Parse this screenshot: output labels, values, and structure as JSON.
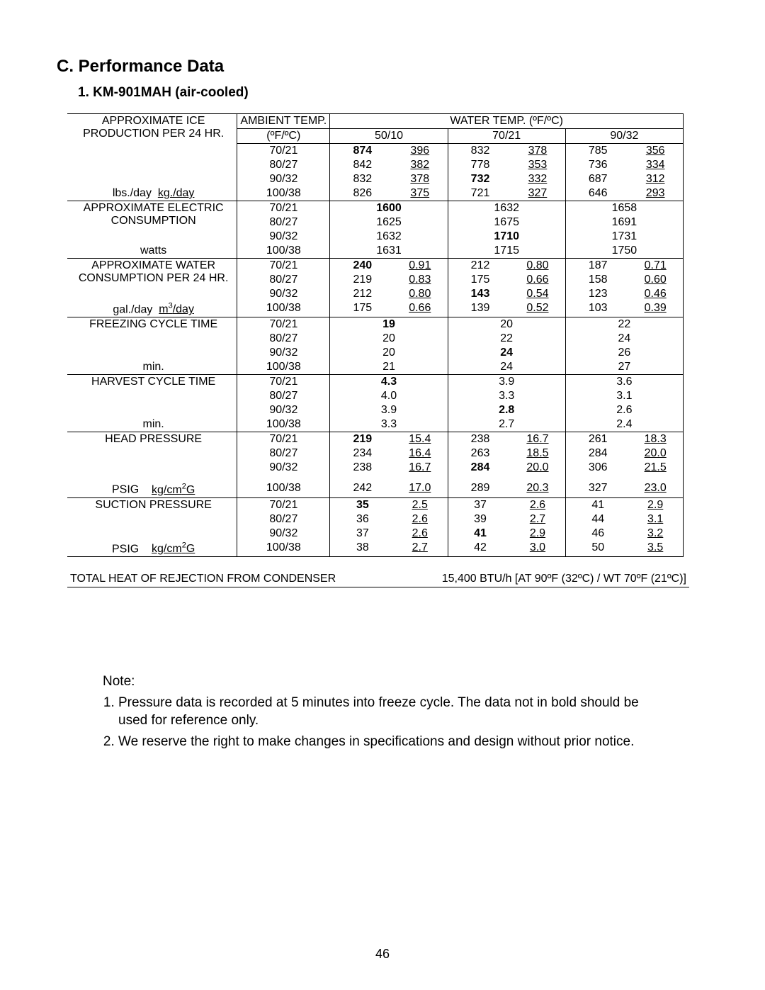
{
  "section_title": "C. Performance Data",
  "model_title": "1. KM-901MAH (air-cooled)",
  "header": {
    "ambient_label": "AMBIENT TEMP.",
    "ambient_unit": "(ºF/ºC)",
    "water_label": "WATER TEMP. (ºF/ºC)",
    "wt_cols": [
      "50/10",
      "70/21",
      "90/32"
    ]
  },
  "ambient_rows": [
    "70/21",
    "80/27",
    "90/32",
    "100/38"
  ],
  "sections": [
    {
      "label_top": "APPROXIMATE ICE",
      "label_mid": "PRODUCTION PER 24 HR.",
      "unit_html": "lbs./day&nbsp;&nbsp;<span class='u'>kg./day</span>",
      "two_col": true,
      "bold_map": [
        [
          true,
          false,
          false,
          false,
          false,
          false
        ],
        [
          false,
          false,
          false,
          false,
          false,
          false
        ],
        [
          false,
          false,
          true,
          false,
          false,
          false
        ],
        [
          false,
          false,
          false,
          false,
          false,
          false
        ]
      ],
      "rows": [
        [
          [
            "874",
            "396"
          ],
          [
            "832",
            "378"
          ],
          [
            "785",
            "356"
          ]
        ],
        [
          [
            "842",
            "382"
          ],
          [
            "778",
            "353"
          ],
          [
            "736",
            "334"
          ]
        ],
        [
          [
            "832",
            "378"
          ],
          [
            "732",
            "332"
          ],
          [
            "687",
            "312"
          ]
        ],
        [
          [
            "826",
            "375"
          ],
          [
            "721",
            "327"
          ],
          [
            "646",
            "293"
          ]
        ]
      ]
    },
    {
      "label_top": "APPROXIMATE ELECTRIC",
      "label_mid": "CONSUMPTION",
      "unit_html": "watts",
      "two_col": false,
      "bold_map": [
        [
          true,
          false,
          false
        ],
        [
          false,
          false,
          false
        ],
        [
          false,
          true,
          false
        ],
        [
          false,
          false,
          false
        ]
      ],
      "rows": [
        [
          "1600",
          "1632",
          "1658"
        ],
        [
          "1625",
          "1675",
          "1691"
        ],
        [
          "1632",
          "1710",
          "1731"
        ],
        [
          "1631",
          "1715",
          "1750"
        ]
      ]
    },
    {
      "label_top": "APPROXIMATE WATER",
      "label_mid": "CONSUMPTION PER 24 HR.",
      "unit_html": "gal./day&nbsp;&nbsp;<span class='u'>m<sup>3</sup>/day</span>",
      "two_col": true,
      "bold_map": [
        [
          true,
          false,
          false,
          false,
          false,
          false
        ],
        [
          false,
          false,
          false,
          false,
          false,
          false
        ],
        [
          false,
          false,
          true,
          false,
          false,
          false
        ],
        [
          false,
          false,
          false,
          false,
          false,
          false
        ]
      ],
      "rows": [
        [
          [
            "240",
            "0.91"
          ],
          [
            "212",
            "0.80"
          ],
          [
            "187",
            "0.71"
          ]
        ],
        [
          [
            "219",
            "0.83"
          ],
          [
            "175",
            "0.66"
          ],
          [
            "158",
            "0.60"
          ]
        ],
        [
          [
            "212",
            "0.80"
          ],
          [
            "143",
            "0.54"
          ],
          [
            "123",
            "0.46"
          ]
        ],
        [
          [
            "175",
            "0.66"
          ],
          [
            "139",
            "0.52"
          ],
          [
            "103",
            "0.39"
          ]
        ]
      ]
    },
    {
      "label_top": "FREEZING CYCLE TIME",
      "label_mid": "",
      "unit_html": "min.",
      "two_col": false,
      "bold_map": [
        [
          true,
          false,
          false
        ],
        [
          false,
          false,
          false
        ],
        [
          false,
          true,
          false
        ],
        [
          false,
          false,
          false
        ]
      ],
      "rows": [
        [
          "19",
          "20",
          "22"
        ],
        [
          "20",
          "22",
          "24"
        ],
        [
          "20",
          "24",
          "26"
        ],
        [
          "21",
          "24",
          "27"
        ]
      ]
    },
    {
      "label_top": "HARVEST CYCLE TIME",
      "label_mid": "",
      "unit_html": "min.",
      "two_col": false,
      "bold_map": [
        [
          true,
          false,
          false
        ],
        [
          false,
          false,
          false
        ],
        [
          false,
          true,
          false
        ],
        [
          false,
          false,
          false
        ]
      ],
      "rows": [
        [
          "4.3",
          "3.9",
          "3.6"
        ],
        [
          "4.0",
          "3.3",
          "3.1"
        ],
        [
          "3.9",
          "2.8",
          "2.6"
        ],
        [
          "3.3",
          "2.7",
          "2.4"
        ]
      ]
    },
    {
      "label_top": "HEAD PRESSURE",
      "label_mid": "",
      "unit_html": "PSIG&nbsp;&nbsp;&nbsp;&nbsp;<span class='u'>kg/cm<sup>2</sup>G</span>",
      "two_col": true,
      "extra_gap": true,
      "bold_map": [
        [
          true,
          false,
          false,
          false,
          false,
          false
        ],
        [
          false,
          false,
          false,
          false,
          false,
          false
        ],
        [
          false,
          false,
          true,
          false,
          false,
          false
        ],
        [
          false,
          false,
          false,
          false,
          false,
          false
        ]
      ],
      "rows": [
        [
          [
            "219",
            "15.4"
          ],
          [
            "238",
            "16.7"
          ],
          [
            "261",
            "18.3"
          ]
        ],
        [
          [
            "234",
            "16.4"
          ],
          [
            "263",
            "18.5"
          ],
          [
            "284",
            "20.0"
          ]
        ],
        [
          [
            "238",
            "16.7"
          ],
          [
            "284",
            "20.0"
          ],
          [
            "306",
            "21.5"
          ]
        ],
        [
          [
            "242",
            "17.0"
          ],
          [
            "289",
            "20.3"
          ],
          [
            "327",
            "23.0"
          ]
        ]
      ]
    },
    {
      "label_top": "SUCTION PRESSURE",
      "label_mid": "",
      "unit_html": "PSIG&nbsp;&nbsp;&nbsp;&nbsp;<span class='u'>kg/cm<sup>2</sup>G</span>",
      "two_col": true,
      "bold_map": [
        [
          true,
          false,
          false,
          false,
          false,
          false
        ],
        [
          false,
          false,
          false,
          false,
          false,
          false
        ],
        [
          false,
          false,
          true,
          false,
          false,
          false
        ],
        [
          false,
          false,
          false,
          false,
          false,
          false
        ]
      ],
      "rows": [
        [
          [
            "35",
            "2.5"
          ],
          [
            "37",
            "2.6"
          ],
          [
            "41",
            "2.9"
          ]
        ],
        [
          [
            "36",
            "2.6"
          ],
          [
            "39",
            "2.7"
          ],
          [
            "44",
            "3.1"
          ]
        ],
        [
          [
            "37",
            "2.6"
          ],
          [
            "41",
            "2.9"
          ],
          [
            "46",
            "3.2"
          ]
        ],
        [
          [
            "38",
            "2.7"
          ],
          [
            "42",
            "3.0"
          ],
          [
            "50",
            "3.5"
          ]
        ]
      ]
    }
  ],
  "heat": {
    "label": "TOTAL HEAT OF REJECTION FROM CONDENSER",
    "value": "15,400  BTU/h  [AT 90ºF (32ºC) / WT 70ºF (21ºC)]"
  },
  "notes": {
    "title": "Note:",
    "items": [
      "Pressure data is recorded at 5 minutes into freeze cycle. The data not in bold should be used for reference only.",
      "We reserve the right to make changes in specifications and design without prior notice."
    ]
  },
  "page_number": "46"
}
